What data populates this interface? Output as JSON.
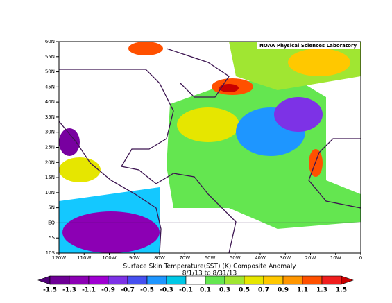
{
  "header": {
    "lab": "NOAA Physical Sciences Laboratory"
  },
  "title": "Surface Skin Temperature(SST) (K) Composite Anomaly",
  "subtitle": "8/1/13 to 8/31/13",
  "lat_labels": [
    "60N",
    "55N",
    "50N",
    "45N",
    "40N",
    "35N",
    "30N",
    "25N",
    "20N",
    "15N",
    "10N",
    "5N",
    "EQ",
    "5S",
    "10S"
  ],
  "lon_labels": [
    "120W",
    "110W",
    "100W",
    "90W",
    "80W",
    "70W",
    "60W",
    "50W",
    "40W",
    "30W",
    "20W",
    "10W",
    "0"
  ],
  "colorbar": {
    "labels": [
      "-1.5",
      "-1.3",
      "-1.1",
      "-0.9",
      "-0.7",
      "-0.5",
      "-0.3",
      "-0.1",
      "0.1",
      "0.3",
      "0.5",
      "0.7",
      "0.9",
      "1.1",
      "1.3",
      "1.5"
    ],
    "colors": [
      "#500078",
      "#6e0096",
      "#8c00b4",
      "#a000d2",
      "#7d32e6",
      "#4650f0",
      "#1e96ff",
      "#00c8e6",
      "#ffffff",
      "#64e650",
      "#a0e632",
      "#e6e600",
      "#ffc800",
      "#ff9600",
      "#ff5000",
      "#f01e1e",
      "#c80000"
    ]
  }
}
